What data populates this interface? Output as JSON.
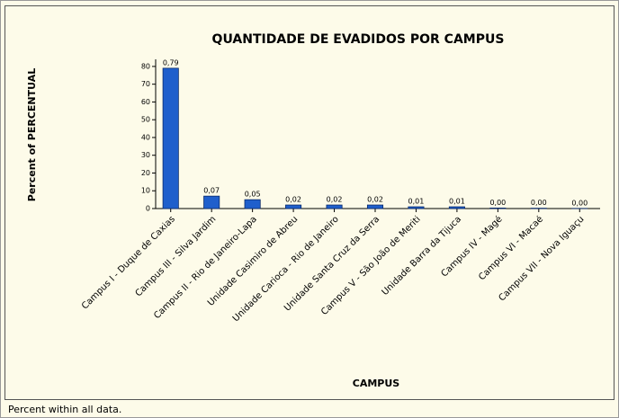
{
  "chart_data": {
    "type": "bar",
    "title": "QUANTIDADE DE EVADIDOS POR CAMPUS",
    "x_label": "CAMPUS",
    "y_label": "Percent of PERCENTUAL",
    "footnote": "Percent within all data.",
    "categories": [
      "Campus I - Duque de Caxias",
      "Campus III - Silva Jardim",
      "Campus II - Rio de Janeiro-Lapa",
      "Unidade Casimiro de Abreu",
      "Unidade Carioca - Rio de Janeiro",
      "Unidade Santa Cruz da Serra",
      "Campus V - São João de Meriti",
      "Unidade Barra da Tijuca",
      "Campus IV - Magé",
      "Campus VI - Macaé",
      "Campus VII - Nova Iguaçu"
    ],
    "values": [
      79,
      7,
      5,
      2,
      2,
      2,
      1,
      1,
      0.3,
      0.2,
      0.1
    ],
    "value_labels": [
      "0,79",
      "0,07",
      "0,05",
      "0,02",
      "0,02",
      "0,02",
      "0,01",
      "0,01",
      "0,00",
      "0,00",
      "0,00"
    ],
    "color": "#1f5fcc",
    "ylim": [
      0,
      84
    ],
    "yticks": [
      0,
      10,
      20,
      30,
      40,
      50,
      60,
      70,
      80
    ]
  }
}
